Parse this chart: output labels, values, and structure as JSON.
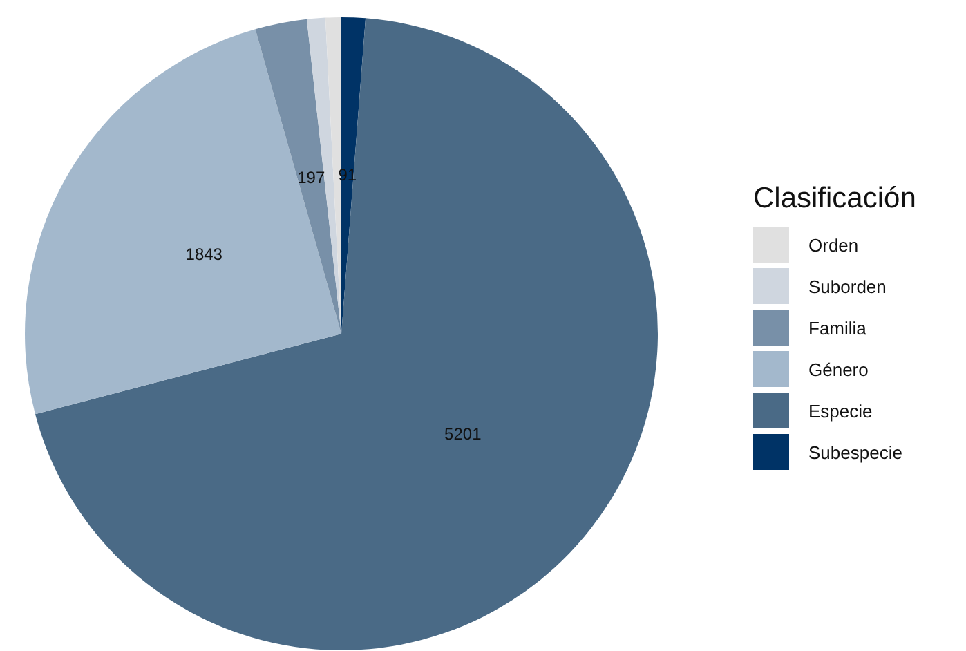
{
  "chart_data": {
    "type": "pie",
    "legend_title": "Clasificación",
    "legend": "right",
    "categories": [
      "Orden",
      "Suborden",
      "Familia",
      "Género",
      "Especie",
      "Subespecie"
    ],
    "values": [
      60,
      70,
      197,
      1843,
      5201,
      91
    ],
    "colors": [
      "#e0e0e0",
      "#cfd6df",
      "#7890a8",
      "#a3b8cc",
      "#4a6a86",
      "#003366"
    ],
    "value_labels": [
      null,
      null,
      "197",
      "1843",
      "5201",
      "91"
    ]
  }
}
